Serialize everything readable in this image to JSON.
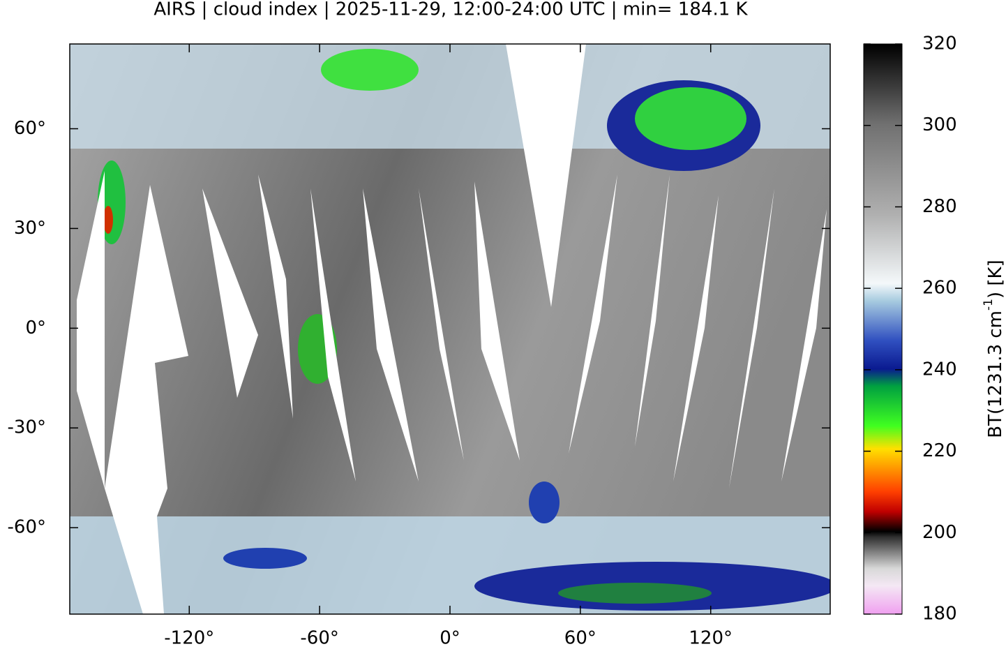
{
  "map": {
    "title": "AIRS | cloud index | 2025-11-29, 12:00-24:00 UTC | min= 184.1 K",
    "xlim": [
      -175,
      175
    ],
    "ylim": [
      -86,
      85.5
    ],
    "xticks": [
      {
        "value": -120,
        "label": "-120°"
      },
      {
        "value": -60,
        "label": "-60°"
      },
      {
        "value": 0,
        "label": "0°"
      },
      {
        "value": 60,
        "label": "60°"
      },
      {
        "value": 120,
        "label": "120°"
      }
    ],
    "yticks": [
      {
        "value": 60,
        "label": "60°"
      },
      {
        "value": 30,
        "label": "30°"
      },
      {
        "value": 0,
        "label": "0°"
      },
      {
        "value": -30,
        "label": "-30°"
      },
      {
        "value": -60,
        "label": "-60°"
      }
    ],
    "colorbar": {
      "label_main": "BT(1231.3 cm",
      "label_sup": "-1",
      "label_end": ") [K]",
      "range": [
        180,
        320
      ],
      "ticks": [
        180,
        200,
        220,
        240,
        260,
        280,
        300,
        320
      ]
    }
  }
}
